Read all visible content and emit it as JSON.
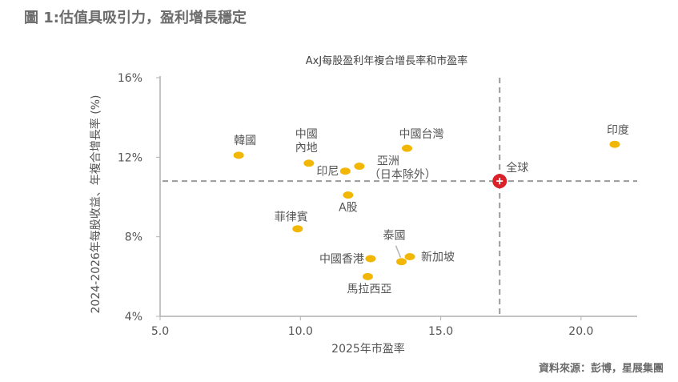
{
  "figure": {
    "title": "圖 1:估值具吸引力，盈利增長穩定",
    "source": "資料來源：彭博，星展集團"
  },
  "colors": {
    "point": "#F2B705",
    "highlight": "#D9222A",
    "reference_line": "#9A9A9A",
    "axis": "#B0B0B0",
    "text": "#555555"
  },
  "chart_data": {
    "type": "scatter",
    "title": "AxJ每股盈利年複合增長率和市盈率",
    "xlabel": "2025年市盈率",
    "ylabel": "2024-2026年每股收益、年複合增長率 (%)",
    "xlim": [
      5.0,
      22.0
    ],
    "ylim": [
      4,
      16
    ],
    "x_ticks": [
      5.0,
      10.0,
      15.0,
      20.0
    ],
    "x_tick_labels": [
      "5.0",
      "10.0",
      "15.0",
      "20.0"
    ],
    "y_ticks": [
      4,
      8,
      12,
      16
    ],
    "y_tick_labels": [
      "4%",
      "8%",
      "12%",
      "16%"
    ],
    "grid": false,
    "reference_lines": {
      "x": 17.1,
      "y": 10.8
    },
    "points": [
      {
        "label": "韓國",
        "x": 7.8,
        "y": 12.1
      },
      {
        "label": "中國\n內地",
        "x": 10.3,
        "y": 11.7
      },
      {
        "label": "印尼",
        "x": 11.6,
        "y": 11.3
      },
      {
        "label": "亞洲\n（日本除外）",
        "x": 12.1,
        "y": 11.55
      },
      {
        "label": "中國台灣",
        "x": 13.8,
        "y": 12.45
      },
      {
        "label": "印度",
        "x": 21.2,
        "y": 12.65
      },
      {
        "label": "全球",
        "x": 17.1,
        "y": 10.8,
        "highlight": true
      },
      {
        "label": "A股",
        "x": 11.7,
        "y": 10.1
      },
      {
        "label": "菲律賓",
        "x": 9.9,
        "y": 8.4
      },
      {
        "label": "泰國",
        "x": 13.6,
        "y": 6.75
      },
      {
        "label": "新加坡",
        "x": 13.9,
        "y": 7.0
      },
      {
        "label": "中國香港",
        "x": 12.5,
        "y": 6.9
      },
      {
        "label": "馬拉西亞",
        "x": 12.4,
        "y": 6.0
      }
    ]
  }
}
